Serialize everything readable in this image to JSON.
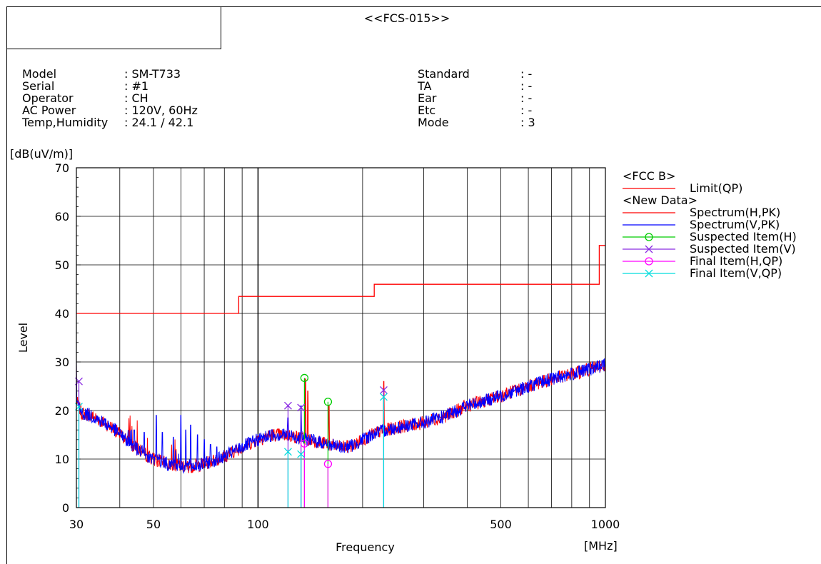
{
  "report": {
    "title": "<<FCS-015>>"
  },
  "info_left": [
    {
      "label": "Model",
      "value": ": SM-T733"
    },
    {
      "label": "Serial",
      "value": ": #1"
    },
    {
      "label": "Operator",
      "value": ": CH"
    },
    {
      "label": "AC Power",
      "value": ": 120V, 60Hz"
    },
    {
      "label": "Temp,Humidity",
      "value": ": 24.1 / 42.1"
    }
  ],
  "info_right": [
    {
      "label": "Standard",
      "value": ": -"
    },
    {
      "label": "TA",
      "value": ": -"
    },
    {
      "label": "Ear",
      "value": ": -"
    },
    {
      "label": "Etc",
      "value": ": -"
    },
    {
      "label": "Mode",
      "value": ": 3"
    }
  ],
  "chart_data": {
    "type": "line",
    "ylabel": "Level",
    "yunit": "[dB(uV/m)]",
    "xlabel": "Frequency",
    "xunit": "[MHz]",
    "xscale": "log",
    "xlim": [
      30,
      1000
    ],
    "ylim": [
      0,
      70
    ],
    "grid": true,
    "x_tick_labels": [
      {
        "value": 30,
        "label": "30"
      },
      {
        "value": 50,
        "label": "50"
      },
      {
        "value": 100,
        "label": "100"
      },
      {
        "value": 500,
        "label": "500"
      },
      {
        "value": 1000,
        "label": "1000"
      }
    ],
    "y_tick_labels": [
      {
        "value": 0,
        "label": "0"
      },
      {
        "value": 10,
        "label": "10"
      },
      {
        "value": 20,
        "label": "20"
      },
      {
        "value": 30,
        "label": "30"
      },
      {
        "value": 40,
        "label": "40"
      },
      {
        "value": 50,
        "label": "50"
      },
      {
        "value": 60,
        "label": "60"
      },
      {
        "value": 70,
        "label": "70"
      }
    ],
    "legend": {
      "placement": "right",
      "groups": [
        {
          "title": "<FCC B>",
          "items": [
            {
              "label": "Limit(QP)",
              "color": "#ff0000",
              "marker": "none"
            }
          ]
        },
        {
          "title": "<New Data>",
          "items": [
            {
              "label": "Spectrum(H,PK)",
              "color": "#ff0000",
              "marker": "none"
            },
            {
              "label": "Spectrum(V,PK)",
              "color": "#0000ff",
              "marker": "none"
            },
            {
              "label": "Suspected Item(H)",
              "color": "#00cc00",
              "marker": "circle"
            },
            {
              "label": "Suspected Item(V)",
              "color": "#8a2be2",
              "marker": "x"
            },
            {
              "label": "Final Item(H,QP)",
              "color": "#ff00ff",
              "marker": "circle"
            },
            {
              "label": "Final Item(V,QP)",
              "color": "#00dddd",
              "marker": "x"
            }
          ]
        }
      ]
    },
    "limit_qp": [
      {
        "x": 30,
        "y": 40
      },
      {
        "x": 88,
        "y": 40
      },
      {
        "x": 88,
        "y": 43.5
      },
      {
        "x": 216,
        "y": 43.5
      },
      {
        "x": 216,
        "y": 46
      },
      {
        "x": 960,
        "y": 46
      },
      {
        "x": 960,
        "y": 54
      },
      {
        "x": 1000,
        "y": 54
      }
    ],
    "spectrum_envelope": [
      [
        30,
        22
      ],
      [
        31,
        19.5
      ],
      [
        33,
        19
      ],
      [
        35,
        18
      ],
      [
        38,
        16.5
      ],
      [
        41,
        14.5
      ],
      [
        45,
        12
      ],
      [
        50,
        10
      ],
      [
        55,
        9
      ],
      [
        60,
        8.5
      ],
      [
        65,
        8.5
      ],
      [
        70,
        9
      ],
      [
        80,
        10.5
      ],
      [
        90,
        12.5
      ],
      [
        100,
        14
      ],
      [
        110,
        15
      ],
      [
        120,
        15
      ],
      [
        130,
        14.5
      ],
      [
        140,
        14
      ],
      [
        150,
        13.5
      ],
      [
        160,
        13
      ],
      [
        170,
        12.5
      ],
      [
        180,
        12.5
      ],
      [
        190,
        13
      ],
      [
        200,
        14
      ],
      [
        220,
        15.5
      ],
      [
        250,
        16.5
      ],
      [
        300,
        17.5
      ],
      [
        350,
        19
      ],
      [
        400,
        21
      ],
      [
        450,
        22
      ],
      [
        500,
        23
      ],
      [
        600,
        25
      ],
      [
        700,
        26.5
      ],
      [
        800,
        27.5
      ],
      [
        900,
        28.5
      ],
      [
        1000,
        29.5
      ]
    ],
    "spectrum_spurs_v": [
      [
        44,
        16
      ],
      [
        47,
        15.5
      ],
      [
        51,
        19
      ],
      [
        53,
        15.5
      ],
      [
        57,
        14.5
      ],
      [
        60,
        19
      ],
      [
        62,
        16
      ],
      [
        64,
        17
      ],
      [
        67,
        15
      ],
      [
        70,
        14
      ],
      [
        73,
        13
      ],
      [
        76,
        12.5
      ],
      [
        122,
        18.5
      ],
      [
        133,
        21
      ]
    ],
    "spectrum_spurs_h": [
      [
        137,
        26.5
      ],
      [
        139,
        24
      ],
      [
        160,
        21
      ],
      [
        230,
        26
      ]
    ],
    "suspected_h": [
      {
        "x": 136,
        "y": 26.7
      },
      {
        "x": 159,
        "y": 21.8
      }
    ],
    "suspected_v": [
      {
        "x": 30.5,
        "y": 26
      },
      {
        "x": 122,
        "y": 21
      },
      {
        "x": 133,
        "y": 20.6
      },
      {
        "x": 230,
        "y": 24.2
      }
    ],
    "final_h": [
      {
        "x": 136,
        "y": 13.2
      },
      {
        "x": 159,
        "y": 9
      }
    ],
    "final_v": [
      {
        "x": 30.5,
        "y": 20.8
      },
      {
        "x": 122,
        "y": 11.5
      },
      {
        "x": 133,
        "y": 11
      },
      {
        "x": 230,
        "y": 22.8
      }
    ]
  }
}
